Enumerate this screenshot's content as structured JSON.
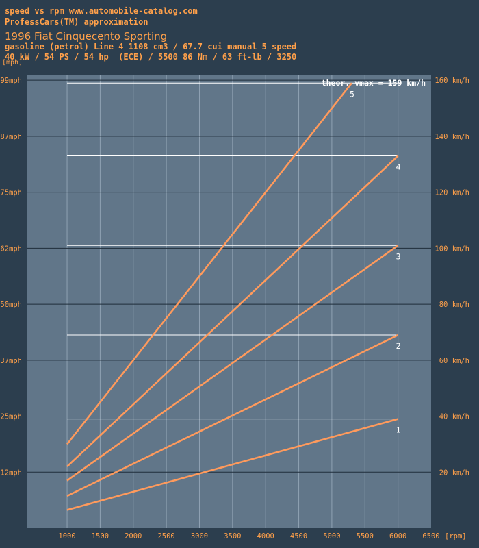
{
  "header": {
    "line1": "speed vs rpm www.automobile-catalog.com",
    "line2": "ProfessCars(TM) approximation",
    "title": "1996 Fiat Cinquecento Sporting",
    "line4": "gasoline (petrol) Line 4 1108 cm3 / 67.7 cui manual 5 speed",
    "line5": "40 kW / 54 PS / 54 hp  (ECE) / 5500 86 Nm / 63 ft-lb / 3250"
  },
  "colors": {
    "background": "#2c3e4e",
    "plot_area": "#617689",
    "text": "#ffa04a",
    "series": "#ff9a5c",
    "limit_lines": "#ffffff"
  },
  "chart_data": {
    "type": "line",
    "title": "1996 Fiat Cinquecento Sporting",
    "annotation": "theor. vmax = 159 km/h",
    "xlabel": "[rpm]",
    "ylabel": "[mph]",
    "xlim": [
      400,
      6500
    ],
    "ylim": [
      0,
      162
    ],
    "x_ticks": [
      1000,
      1500,
      2000,
      2500,
      3000,
      3500,
      4000,
      4500,
      5000,
      5500,
      6000,
      6500
    ],
    "y_ticks_left": [
      {
        "v": 20,
        "label": "12mph"
      },
      {
        "v": 40,
        "label": "25mph"
      },
      {
        "v": 60,
        "label": "37mph"
      },
      {
        "v": 80,
        "label": "50mph"
      },
      {
        "v": 100,
        "label": "62mph"
      },
      {
        "v": 120,
        "label": "75mph"
      },
      {
        "v": 140,
        "label": "87mph"
      },
      {
        "v": 160,
        "label": "99mph"
      }
    ],
    "y_ticks_right": [
      {
        "v": 20,
        "label": "20 km/h"
      },
      {
        "v": 40,
        "label": "40 km/h"
      },
      {
        "v": 60,
        "label": "60 km/h"
      },
      {
        "v": 80,
        "label": "80 km/h"
      },
      {
        "v": 100,
        "label": "100 km/h"
      },
      {
        "v": 120,
        "label": "120 km/h"
      },
      {
        "v": 140,
        "label": "140 km/h"
      },
      {
        "v": 160,
        "label": "160 km/h"
      }
    ],
    "grid": true,
    "series": [
      {
        "name": "1",
        "x": [
          1000,
          6000
        ],
        "y": [
          6.5,
          39
        ]
      },
      {
        "name": "2",
        "x": [
          1000,
          6000
        ],
        "y": [
          11.5,
          69
        ]
      },
      {
        "name": "3",
        "x": [
          1000,
          6000
        ],
        "y": [
          17,
          101
        ]
      },
      {
        "name": "4",
        "x": [
          1000,
          6000
        ],
        "y": [
          22,
          133
        ]
      },
      {
        "name": "5",
        "x": [
          1000,
          5300
        ],
        "y": [
          30,
          159
        ]
      }
    ],
    "max_speed_lines": [
      {
        "y": 39,
        "x": [
          1000,
          6000
        ]
      },
      {
        "y": 69,
        "x": [
          1000,
          6000
        ]
      },
      {
        "y": 101,
        "x": [
          1000,
          6000
        ]
      },
      {
        "y": 133,
        "x": [
          1000,
          6000
        ]
      },
      {
        "y": 159,
        "x": [
          1000,
          6000
        ]
      }
    ]
  }
}
